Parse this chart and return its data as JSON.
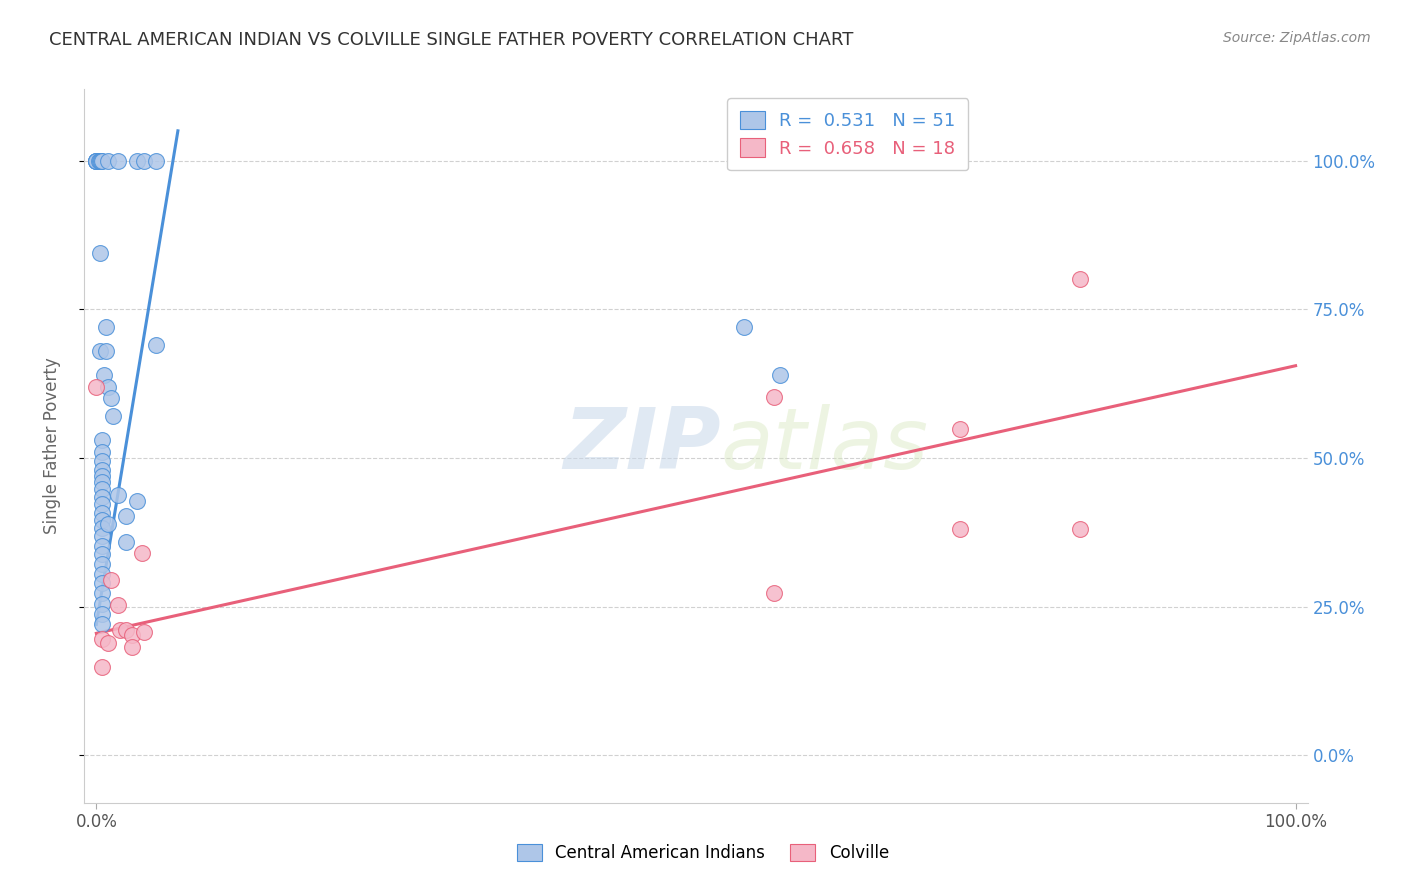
{
  "title": "CENTRAL AMERICAN INDIAN VS COLVILLE SINGLE FATHER POVERTY CORRELATION CHART",
  "source": "Source: ZipAtlas.com",
  "ylabel": "Single Father Poverty",
  "legend_blue_R": "0.531",
  "legend_blue_N": "51",
  "legend_pink_R": "0.658",
  "legend_pink_N": "18",
  "legend_blue_label": "Central American Indians",
  "legend_pink_label": "Colville",
  "watermark_zip": "ZIP",
  "watermark_atlas": "atlas",
  "blue_color": "#aec6e8",
  "pink_color": "#f5b8c8",
  "blue_line_color": "#4a90d9",
  "pink_line_color": "#e8607a",
  "blue_scatter": [
    [
      0.0,
      1.0
    ],
    [
      0.0,
      1.0
    ],
    [
      0.0,
      1.0
    ],
    [
      0.0,
      1.0
    ],
    [
      0.002,
      1.0
    ],
    [
      0.003,
      1.0
    ],
    [
      0.004,
      1.0
    ],
    [
      0.005,
      1.0
    ],
    [
      0.01,
      1.0
    ],
    [
      0.018,
      1.0
    ],
    [
      0.034,
      1.0
    ],
    [
      0.04,
      1.0
    ],
    [
      0.05,
      1.0
    ],
    [
      0.003,
      0.845
    ],
    [
      0.003,
      0.68
    ],
    [
      0.008,
      0.72
    ],
    [
      0.008,
      0.68
    ],
    [
      0.006,
      0.64
    ],
    [
      0.01,
      0.62
    ],
    [
      0.012,
      0.6
    ],
    [
      0.014,
      0.57
    ],
    [
      0.005,
      0.53
    ],
    [
      0.005,
      0.51
    ],
    [
      0.005,
      0.495
    ],
    [
      0.005,
      0.48
    ],
    [
      0.005,
      0.47
    ],
    [
      0.005,
      0.46
    ],
    [
      0.005,
      0.448
    ],
    [
      0.005,
      0.435
    ],
    [
      0.005,
      0.422
    ],
    [
      0.005,
      0.408
    ],
    [
      0.005,
      0.395
    ],
    [
      0.005,
      0.382
    ],
    [
      0.005,
      0.368
    ],
    [
      0.005,
      0.352
    ],
    [
      0.005,
      0.338
    ],
    [
      0.005,
      0.322
    ],
    [
      0.005,
      0.305
    ],
    [
      0.005,
      0.29
    ],
    [
      0.005,
      0.272
    ],
    [
      0.005,
      0.255
    ],
    [
      0.005,
      0.238
    ],
    [
      0.005,
      0.22
    ],
    [
      0.01,
      0.388
    ],
    [
      0.018,
      0.438
    ],
    [
      0.025,
      0.402
    ],
    [
      0.025,
      0.358
    ],
    [
      0.034,
      0.428
    ],
    [
      0.05,
      0.69
    ],
    [
      0.54,
      0.72
    ],
    [
      0.57,
      0.64
    ]
  ],
  "pink_scatter": [
    [
      0.0,
      0.62
    ],
    [
      0.005,
      0.195
    ],
    [
      0.005,
      0.148
    ],
    [
      0.012,
      0.295
    ],
    [
      0.018,
      0.252
    ],
    [
      0.02,
      0.21
    ],
    [
      0.025,
      0.21
    ],
    [
      0.03,
      0.202
    ],
    [
      0.038,
      0.34
    ],
    [
      0.04,
      0.208
    ],
    [
      0.565,
      0.602
    ],
    [
      0.565,
      0.272
    ],
    [
      0.72,
      0.548
    ],
    [
      0.72,
      0.38
    ],
    [
      0.82,
      0.8
    ],
    [
      0.82,
      0.38
    ],
    [
      0.01,
      0.188
    ],
    [
      0.03,
      0.182
    ]
  ],
  "blue_line_x": [
    0.0,
    0.068
  ],
  "blue_line_y": [
    0.22,
    1.05
  ],
  "pink_line_x": [
    0.0,
    1.0
  ],
  "pink_line_y": [
    0.205,
    0.655
  ],
  "xlim": [
    -0.01,
    1.01
  ],
  "ylim": [
    -0.08,
    1.12
  ],
  "yticks": [
    0.0,
    0.25,
    0.5,
    0.75,
    1.0
  ],
  "yticklabels": [
    "0.0%",
    "25.0%",
    "50.0%",
    "75.0%",
    "100.0%"
  ],
  "xticks": [
    0.0,
    1.0
  ],
  "xticklabels": [
    "0.0%",
    "100.0%"
  ],
  "grid_color": "#cccccc",
  "bg_color": "#ffffff",
  "tick_color": "#4a90d9",
  "bottom_tick_color": "#555555"
}
